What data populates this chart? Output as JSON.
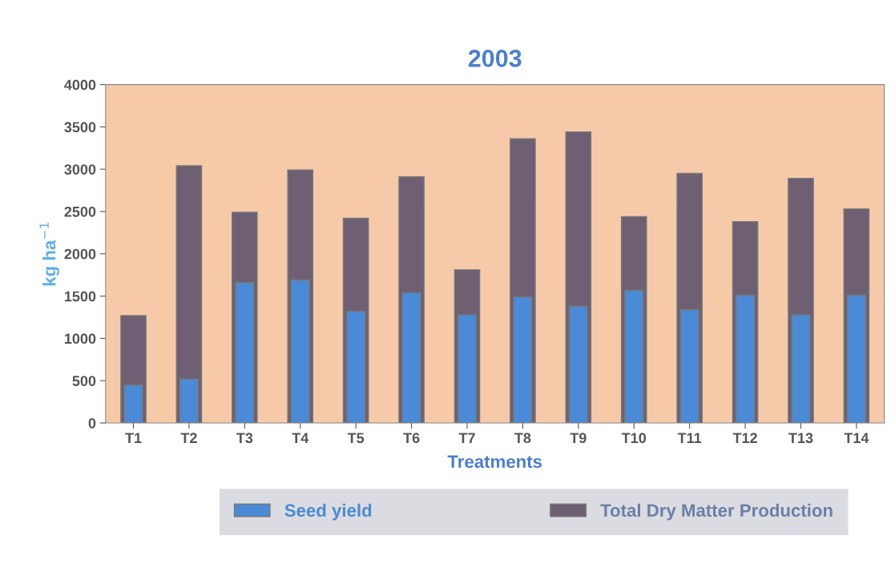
{
  "chart_data": {
    "type": "bar",
    "title": "2003",
    "xlabel": "Treatments",
    "ylabel": "kg ha$^{−1}$",
    "categories": [
      "T1",
      "T2",
      "T3",
      "T4",
      "T5",
      "T6",
      "T7",
      "T8",
      "T9",
      "T10",
      "T11",
      "T12",
      "T13",
      "T14"
    ],
    "series": [
      {
        "name": "Total Dry Matter Production",
        "color": "#6e5f72",
        "values": [
          1270,
          3040,
          2490,
          2990,
          2420,
          2910,
          1810,
          3360,
          3440,
          2440,
          2950,
          2380,
          2890,
          2530
        ]
      },
      {
        "name": "Seed yield",
        "color": "#4a8ad6",
        "values": [
          450,
          520,
          1660,
          1690,
          1320,
          1540,
          1280,
          1490,
          1380,
          1570,
          1340,
          1510,
          1280,
          1510
        ]
      }
    ],
    "ylim": [
      0,
      4000
    ],
    "yticks": [
      0,
      500,
      1000,
      1500,
      2000,
      2500,
      3000,
      3500,
      4000
    ],
    "grid": false,
    "legend": "bottom"
  }
}
